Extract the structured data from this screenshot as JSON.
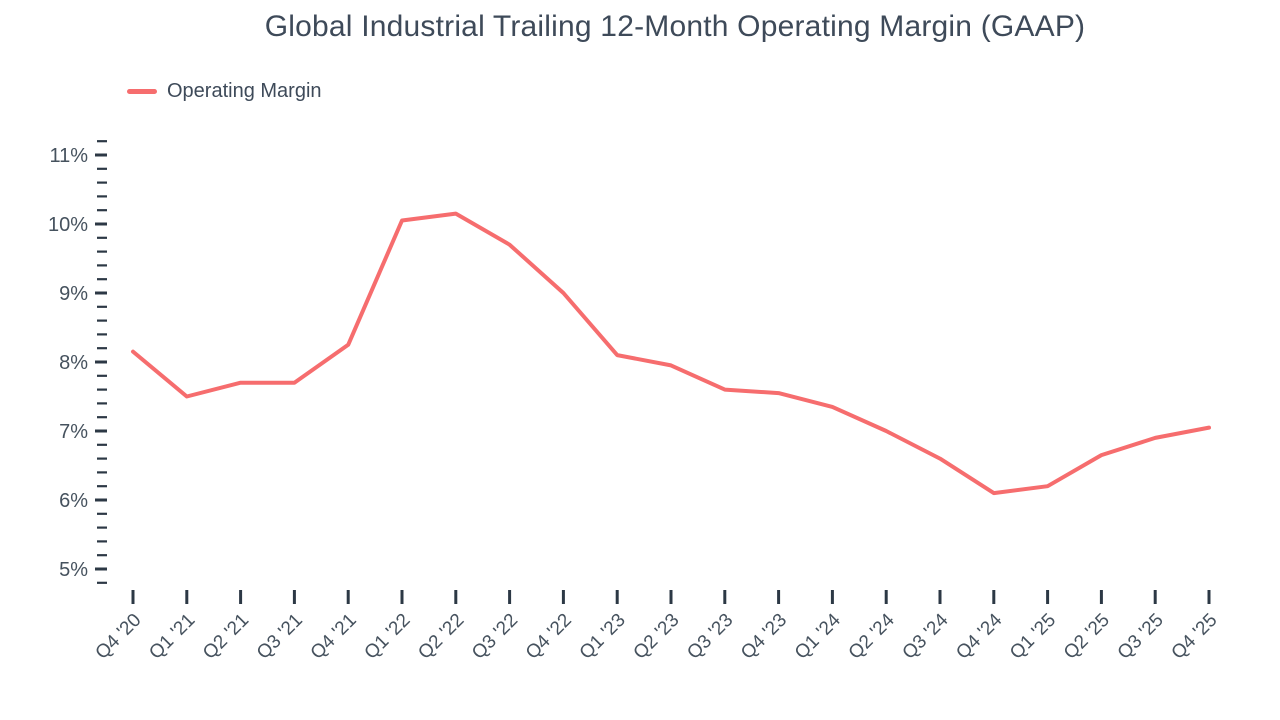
{
  "chart_data": {
    "type": "line",
    "title": "Global Industrial Trailing 12-Month Operating Margin (GAAP)",
    "xlabel": "",
    "ylabel": "",
    "grid": false,
    "legend_position": "top-left",
    "categories": [
      "Q4 '20",
      "Q1 '21",
      "Q2 '21",
      "Q3 '21",
      "Q4 '21",
      "Q1 '22",
      "Q2 '22",
      "Q3 '22",
      "Q4 '22",
      "Q1 '23",
      "Q2 '23",
      "Q3 '23",
      "Q4 '23",
      "Q1 '24",
      "Q2 '24",
      "Q3 '24",
      "Q4 '24",
      "Q1 '25",
      "Q2 '25",
      "Q3 '25",
      "Q4 '25"
    ],
    "series": [
      {
        "name": "Operating Margin",
        "color": "#F66D6E",
        "unit": "%",
        "values": [
          8.15,
          7.5,
          7.7,
          7.7,
          8.25,
          10.05,
          10.15,
          9.7,
          9.0,
          8.1,
          7.95,
          7.6,
          7.55,
          7.35,
          7.0,
          6.6,
          6.1,
          6.2,
          6.65,
          6.9,
          7.05
        ]
      }
    ],
    "y_axis": {
      "tick_values": [
        11,
        10,
        9,
        8,
        7,
        6,
        5
      ],
      "tick_labels": [
        "11%",
        "10%",
        "9%",
        "8%",
        "7%",
        "6%",
        "5%"
      ],
      "range": [
        4.8,
        11.2
      ],
      "minor_step": 0.2
    },
    "colors": {
      "line": "#F66D6E",
      "axis_text": "#46525E",
      "tick": "#2C3845",
      "title_text": "#3E4A59"
    }
  }
}
